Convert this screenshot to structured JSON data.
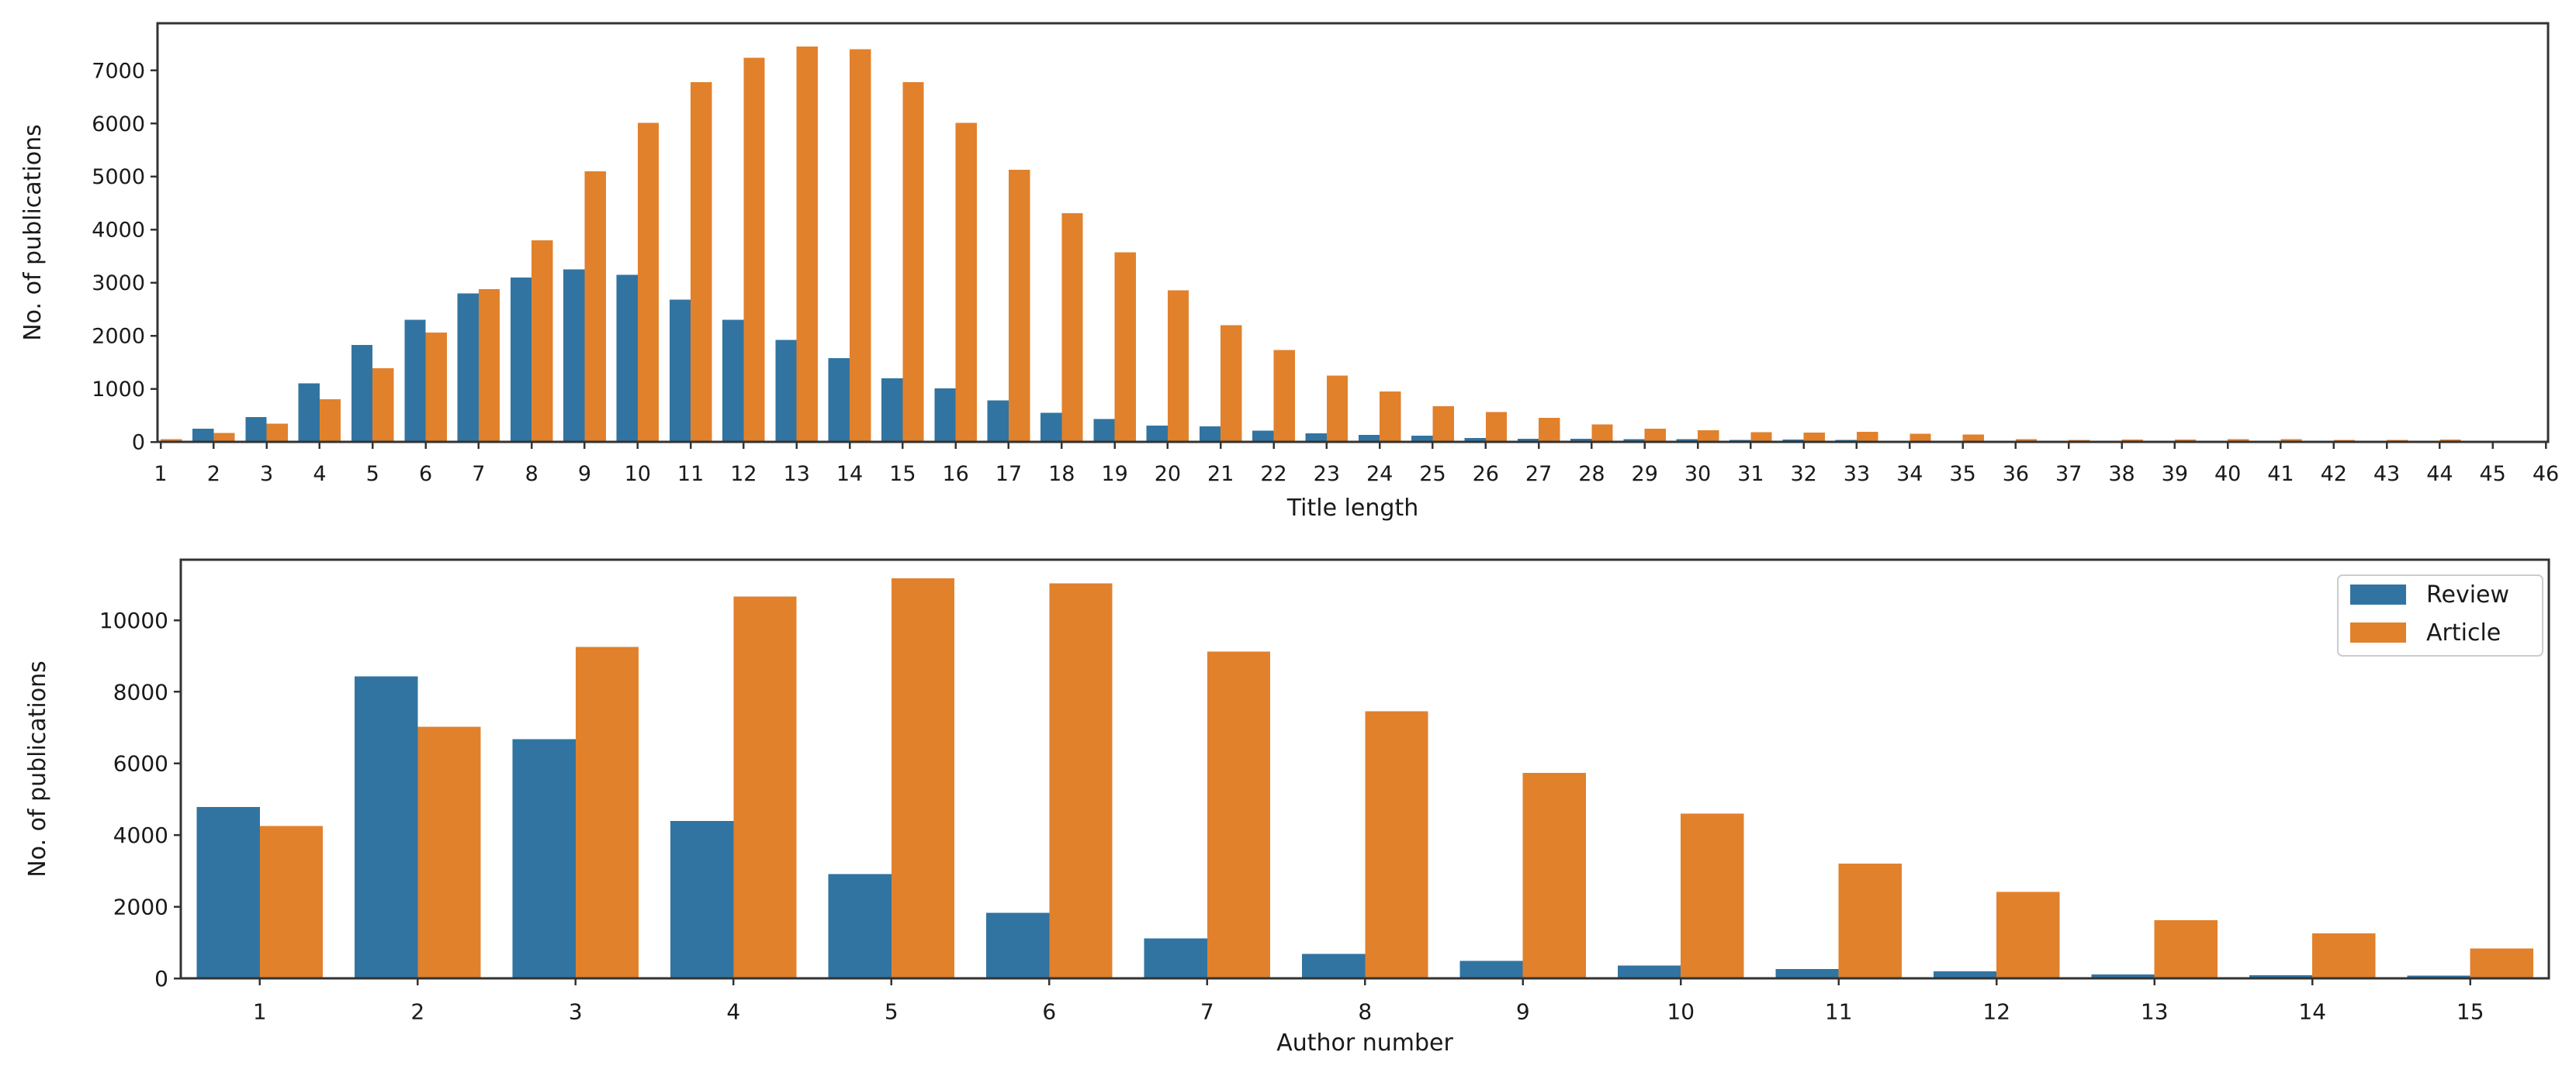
{
  "figure": {
    "background": "#ffffff",
    "text_color": "#1a1a1a",
    "spine_color": "#333333",
    "legend_border_color": "#cccccc"
  },
  "chart_data": [
    {
      "type": "bar",
      "title": "",
      "xlabel": "Title length",
      "ylabel": "No. of publications",
      "grid": false,
      "legend_visible": false,
      "categories": [
        "1",
        "2",
        "3",
        "4",
        "5",
        "6",
        "7",
        "8",
        "9",
        "10",
        "11",
        "12",
        "13",
        "14",
        "15",
        "16",
        "17",
        "18",
        "19",
        "20",
        "21",
        "22",
        "23",
        "24",
        "25",
        "26",
        "27",
        "28",
        "29",
        "30",
        "31",
        "32",
        "33",
        "34",
        "35",
        "36",
        "37",
        "38",
        "39",
        "40",
        "41",
        "42",
        "43",
        "44",
        "45",
        "46"
      ],
      "yticks": [
        0,
        1000,
        2000,
        3000,
        4000,
        5000,
        6000,
        7000
      ],
      "ylim": [
        0,
        7890
      ],
      "series": [
        {
          "name": "Review",
          "color": "#3274a1",
          "values": [
            15,
            250,
            470,
            1100,
            1830,
            2300,
            2800,
            3100,
            3250,
            3150,
            2680,
            2300,
            1920,
            1580,
            1200,
            1010,
            780,
            550,
            430,
            310,
            295,
            215,
            160,
            130,
            120,
            70,
            60,
            55,
            50,
            50,
            40,
            45,
            40,
            25,
            18,
            14,
            12,
            10,
            8,
            8,
            6,
            5,
            5,
            4,
            3,
            2
          ]
        },
        {
          "name": "Article",
          "color": "#e1812c",
          "values": [
            50,
            170,
            340,
            800,
            1390,
            2060,
            2880,
            3800,
            5100,
            6010,
            6780,
            7240,
            7450,
            7400,
            6780,
            6010,
            5130,
            4310,
            3570,
            2860,
            2200,
            1730,
            1250,
            950,
            670,
            560,
            450,
            330,
            250,
            220,
            180,
            175,
            190,
            150,
            140,
            50,
            40,
            45,
            45,
            50,
            50,
            40,
            40,
            45,
            10,
            8
          ]
        }
      ]
    },
    {
      "type": "bar",
      "title": "",
      "xlabel": "Author number",
      "ylabel": "No. of publications",
      "grid": false,
      "legend_visible": true,
      "legend_position": "top-right",
      "legend_items": [
        "Review",
        "Article"
      ],
      "categories": [
        "1",
        "2",
        "3",
        "4",
        "5",
        "6",
        "7",
        "8",
        "9",
        "10",
        "11",
        "12",
        "13",
        "14",
        "15"
      ],
      "yticks": [
        0,
        2000,
        4000,
        6000,
        8000,
        10000
      ],
      "ylim": [
        0,
        11690
      ],
      "series": [
        {
          "name": "Review",
          "color": "#3274a1",
          "values": [
            4780,
            8430,
            6680,
            4390,
            2910,
            1830,
            1110,
            680,
            490,
            360,
            260,
            190,
            110,
            90,
            80
          ]
        },
        {
          "name": "Article",
          "color": "#e1812c",
          "values": [
            4250,
            7030,
            9250,
            10660,
            11170,
            11030,
            9130,
            7460,
            5740,
            4600,
            3200,
            2410,
            1620,
            1260,
            830
          ]
        }
      ]
    }
  ]
}
